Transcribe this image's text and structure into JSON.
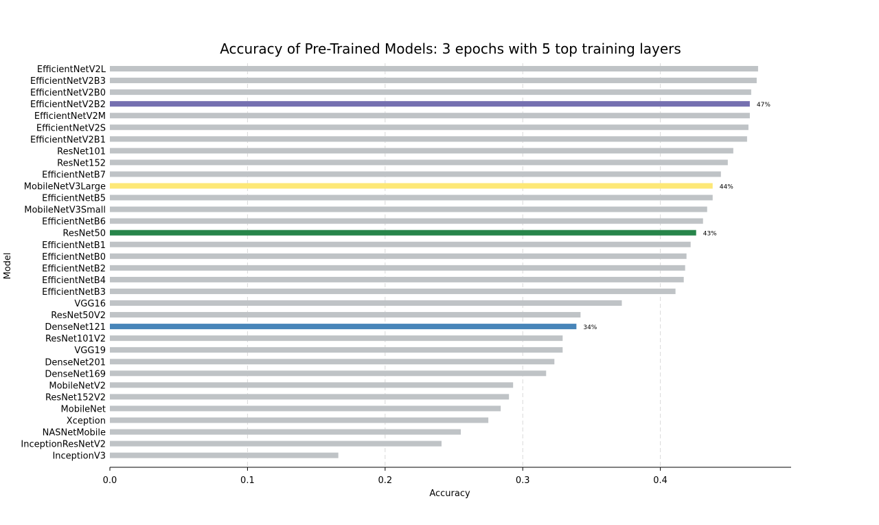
{
  "chart_data": {
    "type": "bar",
    "orientation": "horizontal",
    "title": "Accuracy of Pre-Trained Models: 3 epochs with 5 top training layers",
    "xlabel": "Accuracy",
    "ylabel": "Model",
    "xlim": [
      0,
      0.495
    ],
    "xticks": [
      "0.0",
      "0.1",
      "0.2",
      "0.3",
      "0.4"
    ],
    "grid": "vertical-dashed",
    "default_color": "#bfc3c6",
    "categories": [
      "EfficientNetV2L",
      "EfficientNetV2B3",
      "EfficientNetV2B0",
      "EfficientNetV2B2",
      "EfficientNetV2M",
      "EfficientNetV2S",
      "EfficientNetV2B1",
      "ResNet101",
      "ResNet152",
      "EfficientNetB7",
      "MobileNetV3Large",
      "EfficientNetB5",
      "MobileNetV3Small",
      "EfficientNetB6",
      "ResNet50",
      "EfficientNetB1",
      "EfficientNetB0",
      "EfficientNetB2",
      "EfficientNetB4",
      "EfficientNetB3",
      "VGG16",
      "ResNet50V2",
      "DenseNet121",
      "ResNet101V2",
      "VGG19",
      "DenseNet201",
      "DenseNet169",
      "MobileNetV2",
      "ResNet152V2",
      "MobileNet",
      "Xception",
      "NASNetMobile",
      "InceptionResNetV2",
      "InceptionV3"
    ],
    "values": [
      0.471,
      0.47,
      0.466,
      0.465,
      0.465,
      0.464,
      0.463,
      0.453,
      0.449,
      0.444,
      0.438,
      0.438,
      0.434,
      0.431,
      0.426,
      0.422,
      0.419,
      0.418,
      0.417,
      0.411,
      0.372,
      0.342,
      0.339,
      0.329,
      0.329,
      0.323,
      0.317,
      0.293,
      0.29,
      0.284,
      0.275,
      0.255,
      0.241,
      0.166
    ],
    "highlights": [
      {
        "category": "EfficientNetV2B2",
        "color": "#7570b0",
        "label": "47%"
      },
      {
        "category": "MobileNetV3Large",
        "color": "#fde877",
        "label": "44%"
      },
      {
        "category": "ResNet50",
        "color": "#27854a",
        "label": "43%"
      },
      {
        "category": "DenseNet121",
        "color": "#4785b9",
        "label": "34%"
      }
    ]
  }
}
